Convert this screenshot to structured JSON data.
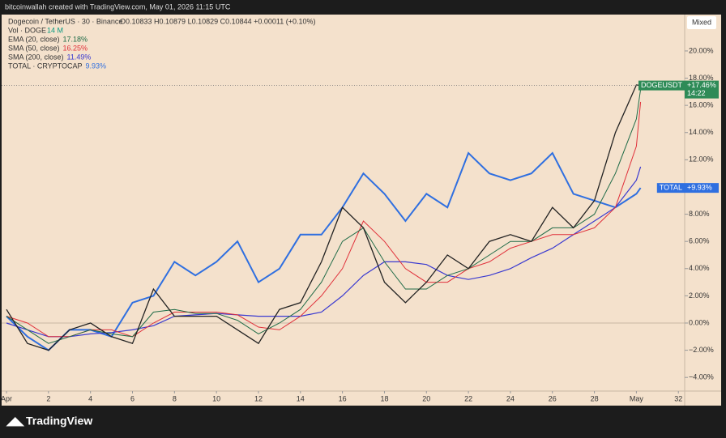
{
  "caption": "bitcoinwallah created with TradingView.com, May 01, 2026 11:15 UTC",
  "header": {
    "symbol": "Dogecoin / TetherUS · 30 · Binance",
    "ohlc": "O0.10833 H0.10879 L0.10829 C0.10844 +0.00011 (+0.10%)",
    "volume": {
      "name": "Vol · DOGE",
      "value": "14 M"
    }
  },
  "button": "Mixed",
  "logo": "TradingView",
  "chart_data": {
    "type": "line",
    "x": [
      0,
      1,
      2,
      3,
      4,
      5,
      6,
      7,
      8,
      9,
      10,
      11,
      12,
      13,
      14,
      15,
      16,
      17,
      18,
      19,
      20,
      21,
      22,
      23,
      24,
      25,
      26,
      27,
      28,
      29,
      30,
      30.2
    ],
    "xlim": [
      -0.31,
      32.3
    ],
    "xticks": [
      {
        "value": 0,
        "label": "Apr"
      },
      2,
      4,
      6,
      8,
      10,
      12,
      14,
      16,
      18,
      20,
      22,
      24,
      26,
      28,
      {
        "value": 30,
        "label": "May"
      },
      32
    ],
    "xtick_labels_override": null,
    "ylim": [
      -5,
      23.15
    ],
    "yticks": [
      {
        "value": -4,
        "label": "−4.00%"
      },
      {
        "value": -2,
        "label": "−2.00%"
      },
      {
        "value": 0,
        "label": "0.00%"
      },
      {
        "value": 2,
        "label": "2.00%"
      },
      {
        "value": 4,
        "label": "4.00%"
      },
      {
        "value": 6,
        "label": "6.00%"
      },
      {
        "value": 8,
        "label": "8.00%"
      },
      {
        "value": 10,
        "label": "10.00%"
      },
      {
        "value": 12,
        "label": "12.00%"
      },
      {
        "value": 14,
        "label": "14.00%"
      },
      {
        "value": 16,
        "label": "16.00%"
      },
      {
        "value": 18,
        "label": "18.00%"
      },
      {
        "value": 20,
        "label": "20.00%"
      }
    ],
    "series": [
      {
        "name": "TOTAL · CRYPTOCAP",
        "legend_value": "9.93%",
        "color": "#2f6fe0",
        "width": 2,
        "values": [
          0.5,
          -1,
          -2,
          -0.5,
          -0.5,
          -1,
          1.5,
          2,
          4.5,
          3.5,
          4.5,
          6,
          3,
          4,
          6.5,
          6.5,
          8.5,
          11,
          9.5,
          7.5,
          9.5,
          8.5,
          12.5,
          11,
          10.5,
          11,
          12.5,
          9.5,
          9,
          8.5,
          9.5,
          9.93
        ]
      },
      {
        "name": "SMA (200, close)",
        "legend_value": "11.49%",
        "color": "#3a3ad0",
        "width": 1.2,
        "values": [
          0,
          -0.5,
          -1,
          -1,
          -0.8,
          -0.7,
          -0.5,
          -0.2,
          0.5,
          0.6,
          0.7,
          0.6,
          0.5,
          0.5,
          0.5,
          0.8,
          2,
          3.5,
          4.5,
          4.5,
          4.3,
          3.5,
          3.2,
          3.5,
          4,
          4.8,
          5.5,
          6.5,
          7.5,
          8.5,
          10.5,
          11.49
        ]
      },
      {
        "name": "SMA (50, close)",
        "legend_value": "16.25%",
        "color": "#e0303a",
        "width": 1,
        "values": [
          0.5,
          0,
          -1,
          -1,
          -0.5,
          -0.5,
          -1,
          0,
          0.8,
          0.8,
          0.8,
          0.6,
          -0.3,
          -0.5,
          0.5,
          2,
          4,
          7.5,
          6,
          4,
          3,
          3,
          4,
          4.5,
          5.5,
          6,
          6.5,
          6.5,
          7,
          8.5,
          13,
          16.25
        ]
      },
      {
        "name": "EMA (20, close)",
        "legend_value": "17.18%",
        "color": "#1f6b47",
        "width": 1,
        "values": [
          0.5,
          -0.5,
          -1.5,
          -1,
          -0.5,
          -0.8,
          -1,
          0.8,
          1,
          0.7,
          0.7,
          0.2,
          -0.8,
          0,
          1,
          3,
          6,
          7,
          4.5,
          2.5,
          2.5,
          3.5,
          4,
          5,
          6,
          6,
          7,
          7,
          8,
          11,
          15,
          17.18
        ]
      },
      {
        "name": "DOGEUSDT",
        "color": "#222222",
        "width": 1.3,
        "values": [
          1,
          -1.5,
          -2,
          -0.5,
          0,
          -1,
          -1.5,
          2.5,
          0.5,
          0.5,
          0.5,
          -0.5,
          -1.5,
          1,
          1.5,
          4.5,
          8.5,
          7,
          3,
          1.5,
          3,
          5,
          4,
          6,
          6.5,
          6,
          8.5,
          7,
          9,
          14,
          17.5,
          17.46
        ]
      }
    ],
    "price_tags": [
      {
        "name": "DOGEUSDT",
        "value": 17.46,
        "value_label": "+17.46%",
        "time": "14:22",
        "color": "#2e8b57"
      },
      {
        "name": "TOTAL",
        "value": 9.93,
        "value_label": "+9.93%",
        "color": "#2f6fe0"
      }
    ]
  }
}
